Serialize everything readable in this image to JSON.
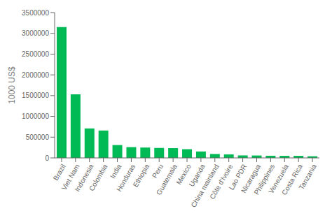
{
  "chart_data": {
    "type": "bar",
    "ylabel": "1000 US$",
    "categories": [
      "Brazil",
      "Viet Nam",
      "Indonesia",
      "Colombia",
      "India",
      "Honduras",
      "Ethiopia",
      "Peru",
      "Guatemala",
      "Mexico",
      "Uganda",
      "China mainland",
      "Côte d'Ivoire",
      "Lao PDR",
      "Nicaragua",
      "Philippines",
      "Venezuela",
      "Costa Rica",
      "Tanzania"
    ],
    "values": [
      3150000,
      1530000,
      710000,
      660000,
      310000,
      260000,
      250000,
      240000,
      235000,
      210000,
      155000,
      95000,
      85000,
      60000,
      58000,
      52000,
      50000,
      50000,
      40000
    ],
    "color": "#00bb55",
    "ylim": [
      0,
      3500000
    ],
    "yticks": [
      0,
      500000,
      1000000,
      1500000,
      2000000,
      2500000,
      3000000,
      3500000
    ],
    "grid": false
  }
}
